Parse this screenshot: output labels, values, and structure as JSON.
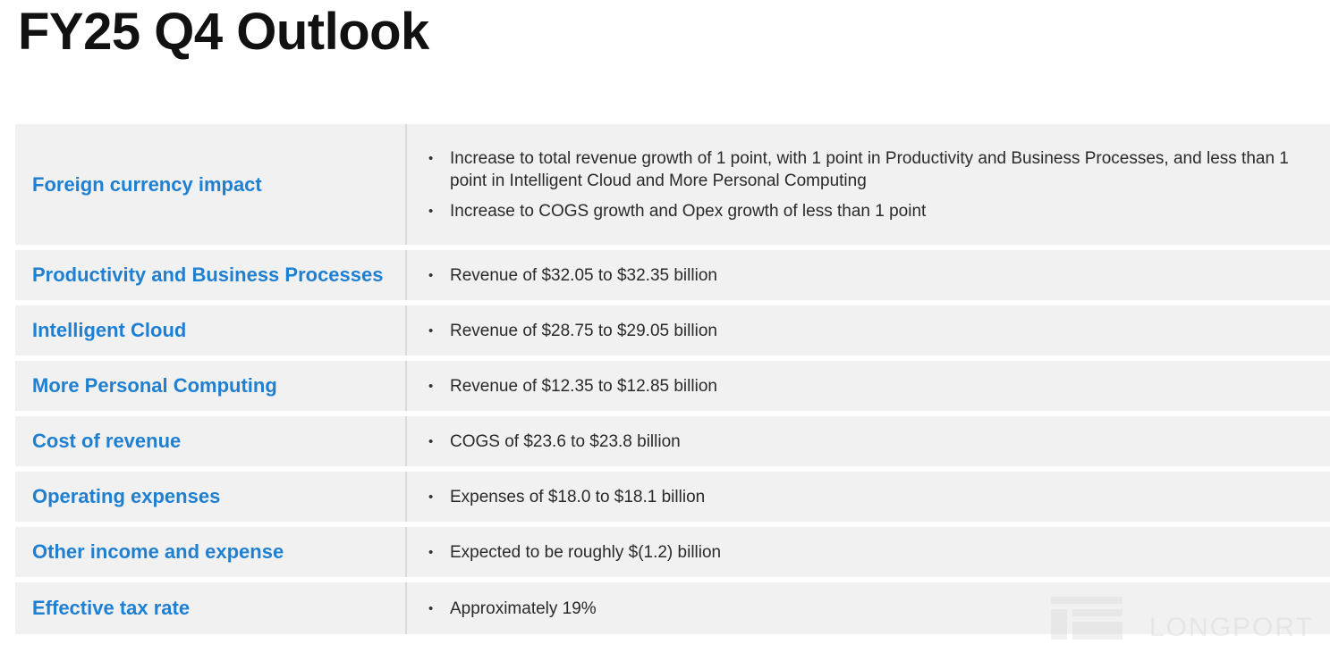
{
  "title": "FY25 Q4 Outlook",
  "rows": [
    {
      "label": "Foreign currency impact",
      "bullets": [
        "Increase to total revenue growth of 1 point, with 1 point in Productivity and Business Processes, and less than 1 point in Intelligent Cloud and More Personal Computing",
        "Increase to COGS growth and Opex growth of less than 1 point"
      ]
    },
    {
      "label": "Productivity and Business Processes",
      "bullets": [
        "Revenue of $32.05 to $32.35 billion"
      ]
    },
    {
      "label": "Intelligent Cloud",
      "bullets": [
        "Revenue of $28.75 to $29.05 billion"
      ]
    },
    {
      "label": "More Personal Computing",
      "bullets": [
        "Revenue of $12.35 to $12.85 billion"
      ]
    },
    {
      "label": "Cost of revenue",
      "bullets": [
        "COGS of $23.6 to $23.8 billion"
      ]
    },
    {
      "label": "Operating expenses",
      "bullets": [
        "Expenses of $18.0 to $18.1 billion"
      ]
    },
    {
      "label": "Other income and expense",
      "bullets": [
        "Expected to be roughly $(1.2) billion"
      ]
    },
    {
      "label": "Effective tax rate",
      "bullets": [
        "Approximately 19%"
      ]
    }
  ],
  "watermark": {
    "text": "LONGPORT",
    "icon": "longport-logo-icon"
  },
  "colors": {
    "label_blue": "#1f7fd1",
    "row_background": "#f1f1f1"
  }
}
